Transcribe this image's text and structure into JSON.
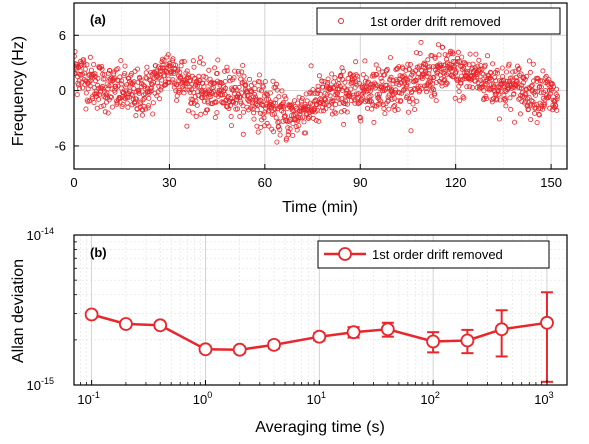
{
  "chart_data": [
    {
      "id": "a",
      "type": "scatter",
      "panel_label": "(a)",
      "xlabel": "Time (min)",
      "ylabel": "Frequency (Hz)",
      "xlim": [
        0,
        155
      ],
      "ylim": [
        -8.5,
        9.5
      ],
      "xticks": [
        0,
        30,
        60,
        90,
        120,
        150
      ],
      "xtick_labels": [
        "0",
        "30",
        "60",
        "90",
        "120",
        "150"
      ],
      "yticks": [
        -6,
        0,
        6
      ],
      "ytick_labels": [
        "-6",
        "0",
        "6"
      ],
      "grid": true,
      "legend": {
        "label": "1st order drift removed",
        "position": "top-right"
      },
      "color": "#e8262b",
      "n_points": 1500,
      "trend": {
        "x": [
          0,
          2,
          5,
          10,
          15,
          20,
          25,
          28,
          30,
          33,
          36,
          40,
          45,
          50,
          55,
          60,
          65,
          68,
          72,
          78,
          85,
          90,
          95,
          100,
          105,
          110,
          115,
          118,
          122,
          126,
          130,
          135,
          140,
          145,
          150,
          152
        ],
        "y": [
          2.5,
          2.0,
          1.0,
          0.3,
          0.0,
          -0.5,
          0.5,
          1.8,
          2.5,
          1.5,
          0.5,
          0.0,
          -0.3,
          0.0,
          -0.5,
          -1.5,
          -2.5,
          -3.0,
          -2.0,
          -1.0,
          -0.2,
          0.0,
          0.3,
          0.5,
          0.8,
          1.2,
          2.0,
          2.2,
          1.5,
          1.8,
          1.0,
          0.5,
          0.3,
          0.0,
          -0.5,
          -1.5
        ]
      },
      "noise_sd": 1.3
    },
    {
      "id": "b",
      "type": "line",
      "panel_label": "(b)",
      "xlabel": "Averaging time (s)",
      "ylabel": "Allan deviation",
      "xscale": "log",
      "yscale": "log",
      "xlim": [
        0.07,
        1500
      ],
      "ylim": [
        1e-15,
        1e-14
      ],
      "xticks": [
        0.1,
        1,
        10,
        100,
        1000
      ],
      "xtick_labels": [
        {
          "base": "10",
          "exp": "-1"
        },
        {
          "base": "10",
          "exp": "0"
        },
        {
          "base": "10",
          "exp": "1"
        },
        {
          "base": "10",
          "exp": "2"
        },
        {
          "base": "10",
          "exp": "3"
        }
      ],
      "yticks": [
        1e-15,
        1e-14
      ],
      "ytick_labels": [
        {
          "base": "10",
          "exp": "-15"
        },
        {
          "base": "10",
          "exp": "-14"
        }
      ],
      "grid": true,
      "legend": {
        "label": "1st order drift removed",
        "position": "top-right"
      },
      "color": "#e8262b",
      "series": [
        {
          "name": "1st order drift removed",
          "x": [
            0.1,
            0.2,
            0.4,
            1,
            2,
            4,
            10,
            20,
            40,
            100,
            200,
            400,
            1000
          ],
          "y": [
            2.95e-15,
            2.55e-15,
            2.5e-15,
            1.73e-15,
            1.72e-15,
            1.85e-15,
            2.1e-15,
            2.25e-15,
            2.35e-15,
            1.95e-15,
            1.98e-15,
            2.35e-15,
            2.6e-15
          ],
          "err": [
            1.2e-16,
            1e-16,
            1e-16,
            8e-17,
            8e-17,
            1e-16,
            1.2e-16,
            1.8e-16,
            2.5e-16,
            3e-16,
            3.5e-16,
            8e-16,
            1.55e-15
          ]
        }
      ]
    }
  ]
}
